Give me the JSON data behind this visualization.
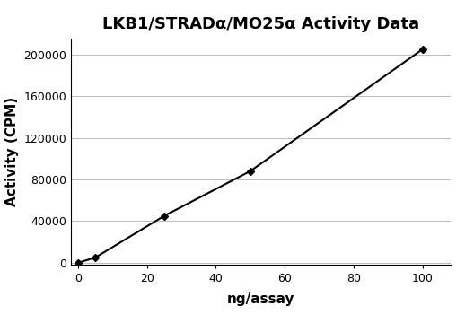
{
  "title": "LKB1/STRADα/MO25α Activity Data",
  "xlabel": "ng/assay",
  "ylabel": "Activity (CPM)",
  "x_data": [
    0,
    5,
    25,
    50,
    100
  ],
  "y_data": [
    0,
    5000,
    45000,
    88000,
    205000
  ],
  "xlim": [
    -2,
    108
  ],
  "ylim": [
    -2000,
    215000
  ],
  "xticks": [
    0,
    20,
    40,
    60,
    80,
    100
  ],
  "yticks": [
    0,
    40000,
    80000,
    120000,
    160000,
    200000
  ],
  "line_color": "#000000",
  "marker": "D",
  "marker_size": 4,
  "marker_color": "#000000",
  "line_width": 1.5,
  "grid": true,
  "grid_axis": "y",
  "grid_color": "#bbbbbb",
  "grid_linewidth": 0.7,
  "background_color": "#ffffff",
  "title_fontsize": 13,
  "label_fontsize": 11,
  "tick_fontsize": 9,
  "title_fontweight": "bold",
  "label_fontweight": "bold"
}
